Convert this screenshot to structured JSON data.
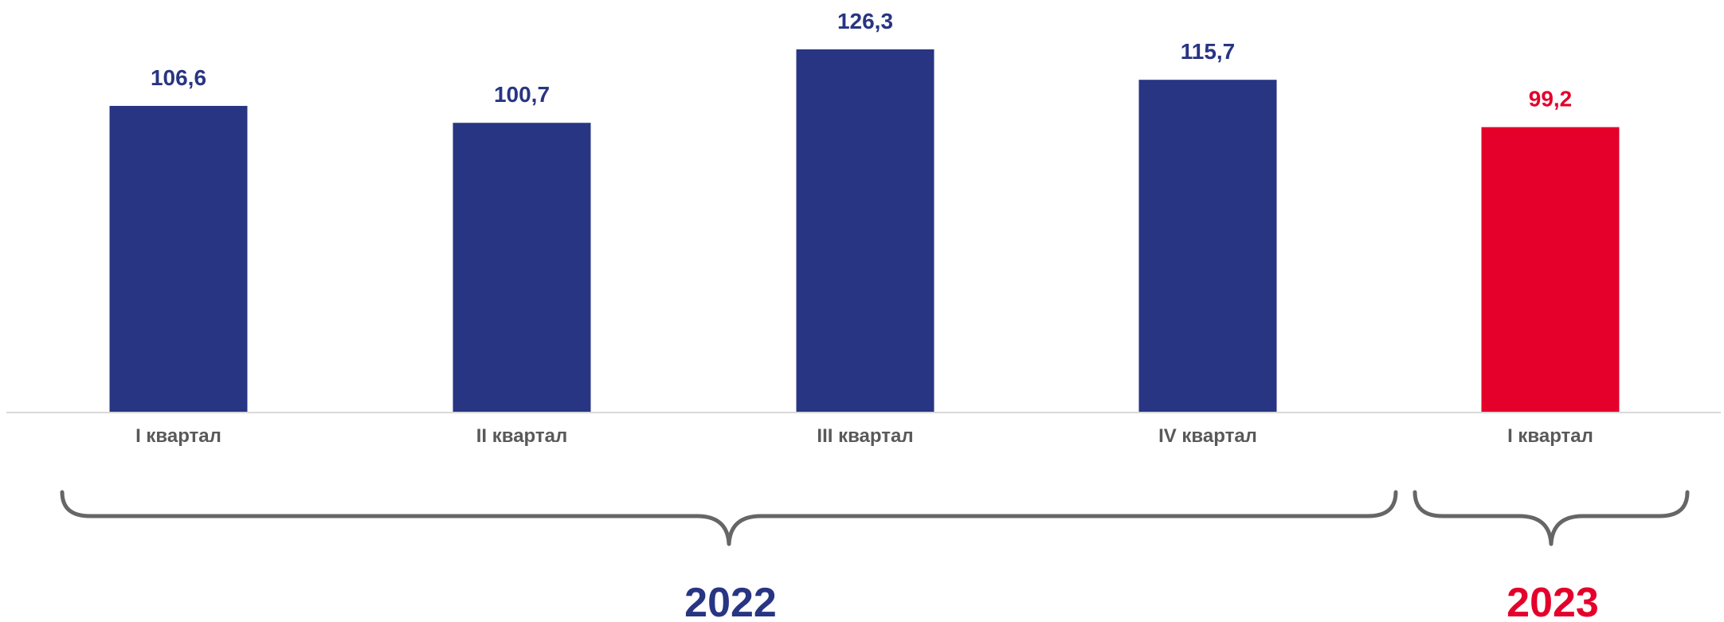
{
  "chart_data": {
    "type": "bar",
    "categories": [
      "I квартал",
      "II квартал",
      "III квартал",
      "IV квартал",
      "I квартал"
    ],
    "values": [
      106.6,
      100.7,
      126.3,
      115.7,
      99.2
    ],
    "value_labels": [
      "106,6",
      "100,7",
      "126,3",
      "115,7",
      "99,2"
    ],
    "ylim": [
      0,
      126.3
    ],
    "grid": false,
    "groups": [
      {
        "label": "2022",
        "from": 0,
        "to": 3,
        "color": "#283583"
      },
      {
        "label": "2023",
        "from": 4,
        "to": 4,
        "color": "#e4002b"
      }
    ],
    "colors": {
      "bar_2022": "#283583",
      "bar_2023": "#e4002b",
      "axis": "#d9d9d9",
      "brace": "#666666",
      "tick_text": "#595959"
    }
  }
}
